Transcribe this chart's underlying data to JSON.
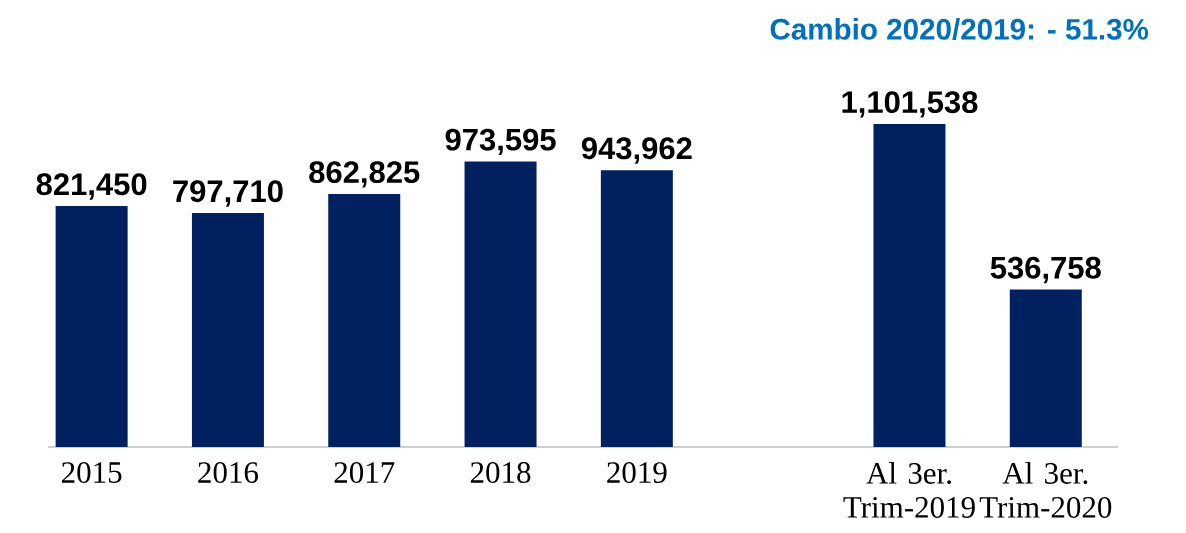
{
  "chart_data": {
    "type": "bar",
    "title": "Cambio 2020/2019: - 51.3%",
    "categories": [
      "2015",
      "2016",
      "2017",
      "2018",
      "2019",
      null,
      "Al 3er. Trim-2019",
      "Al 3er. Trim-2020"
    ],
    "values": [
      821450,
      797710,
      862825,
      973595,
      943962,
      null,
      1101538,
      536758
    ],
    "value_labels": [
      "821,450",
      "797,710",
      "862,825",
      "973,595",
      "943,962",
      null,
      "1,101,538",
      "536,758"
    ],
    "color": "#002060",
    "tick_labels": "x"
  }
}
